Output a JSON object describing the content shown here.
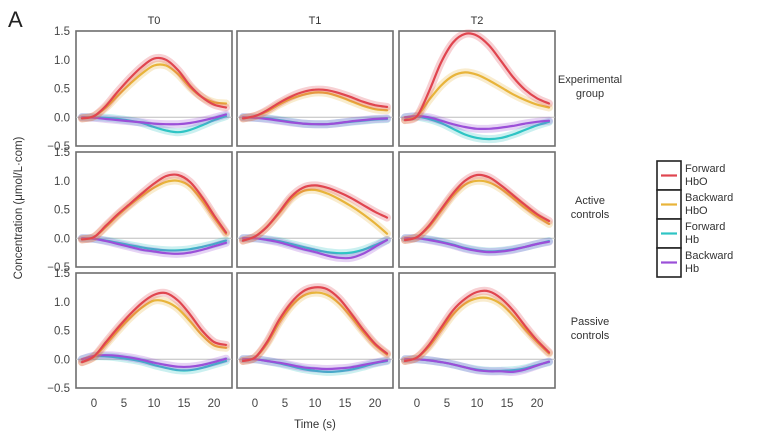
{
  "figure": {
    "panel_letter": "A"
  },
  "chart_data": {
    "type": "line",
    "layout": "facet grid (3 rows x 3 columns)",
    "xlabel": "Time (s)",
    "ylabel": "Concentration (μmol/L·com)",
    "xlim": [
      -3,
      23
    ],
    "ylim": [
      -0.5,
      1.5
    ],
    "xticks": [
      0,
      5,
      10,
      15,
      20
    ],
    "xtick_labels": [
      "0",
      "5",
      "10",
      "15",
      "20"
    ],
    "yticks": [
      -0.5,
      0.0,
      0.5,
      1.0,
      1.5
    ],
    "ytick_labels": [
      "-0.5",
      "0.0",
      "0.5",
      "1.0",
      "1.5"
    ],
    "zero_reference_line": true,
    "grid": false,
    "columns": [
      "T0",
      "T1",
      "T2"
    ],
    "rows": [
      {
        "label_lines": [
          "Experimental",
          "group"
        ]
      },
      {
        "label_lines": [
          "Active",
          "controls"
        ]
      },
      {
        "label_lines": [
          "Passive",
          "controls"
        ]
      }
    ],
    "legend": {
      "placement": "right",
      "entries": [
        {
          "key": "fwd_hbo",
          "lines": [
            "Forward",
            "HbO"
          ],
          "color": "#e0454f"
        },
        {
          "key": "bwd_hbo",
          "lines": [
            "Backward",
            "HbO"
          ],
          "color": "#e8b43a"
        },
        {
          "key": "fwd_hb",
          "lines": [
            "Forward",
            "Hb"
          ],
          "color": "#2ec4c4"
        },
        {
          "key": "bwd_hb",
          "lines": [
            "Backward",
            "Hb"
          ],
          "color": "#9b4fd8"
        }
      ]
    },
    "x": [
      -2,
      0,
      2,
      4,
      6,
      8,
      10,
      12,
      14,
      16,
      18,
      20,
      22
    ],
    "panels": [
      {
        "row": 0,
        "col": 0,
        "series": {
          "fwd_hbo": [
            -0.02,
            0.02,
            0.2,
            0.45,
            0.68,
            0.88,
            1.02,
            1.0,
            0.82,
            0.55,
            0.35,
            0.22,
            0.17
          ],
          "bwd_hbo": [
            -0.02,
            0.02,
            0.17,
            0.38,
            0.58,
            0.76,
            0.9,
            0.9,
            0.75,
            0.52,
            0.35,
            0.26,
            0.24
          ],
          "fwd_hb": [
            0.0,
            0.0,
            -0.01,
            -0.03,
            -0.06,
            -0.1,
            -0.17,
            -0.23,
            -0.26,
            -0.22,
            -0.14,
            -0.05,
            0.02
          ],
          "bwd_hb": [
            0.0,
            -0.01,
            -0.03,
            -0.05,
            -0.07,
            -0.09,
            -0.11,
            -0.12,
            -0.12,
            -0.1,
            -0.06,
            -0.01,
            0.05
          ]
        }
      },
      {
        "row": 0,
        "col": 1,
        "series": {
          "fwd_hbo": [
            -0.02,
            0.02,
            0.12,
            0.25,
            0.36,
            0.44,
            0.48,
            0.47,
            0.42,
            0.35,
            0.27,
            0.21,
            0.18
          ],
          "bwd_hbo": [
            -0.02,
            0.02,
            0.1,
            0.22,
            0.32,
            0.39,
            0.43,
            0.42,
            0.36,
            0.28,
            0.2,
            0.14,
            0.12
          ],
          "fwd_hb": [
            0.0,
            -0.01,
            -0.02,
            -0.05,
            -0.08,
            -0.11,
            -0.12,
            -0.12,
            -0.1,
            -0.08,
            -0.06,
            -0.04,
            -0.03
          ],
          "bwd_hb": [
            0.0,
            -0.01,
            -0.03,
            -0.06,
            -0.09,
            -0.11,
            -0.12,
            -0.12,
            -0.1,
            -0.07,
            -0.05,
            -0.03,
            -0.02
          ]
        }
      },
      {
        "row": 0,
        "col": 2,
        "series": {
          "fwd_hbo": [
            -0.05,
            0.02,
            0.45,
            0.95,
            1.3,
            1.45,
            1.42,
            1.25,
            0.98,
            0.7,
            0.48,
            0.33,
            0.24
          ],
          "bwd_hbo": [
            -0.05,
            0.02,
            0.3,
            0.55,
            0.72,
            0.78,
            0.74,
            0.64,
            0.52,
            0.4,
            0.3,
            0.22,
            0.17
          ],
          "fwd_hb": [
            0.0,
            0.01,
            -0.03,
            -0.1,
            -0.2,
            -0.3,
            -0.36,
            -0.38,
            -0.36,
            -0.3,
            -0.22,
            -0.14,
            -0.08
          ],
          "bwd_hb": [
            0.0,
            0.02,
            0.0,
            -0.06,
            -0.12,
            -0.17,
            -0.2,
            -0.2,
            -0.18,
            -0.15,
            -0.11,
            -0.08,
            -0.06
          ]
        }
      },
      {
        "row": 1,
        "col": 0,
        "series": {
          "fwd_hbo": [
            -0.02,
            0.02,
            0.22,
            0.42,
            0.6,
            0.78,
            0.95,
            1.08,
            1.1,
            0.98,
            0.72,
            0.4,
            0.1
          ],
          "bwd_hbo": [
            -0.02,
            0.02,
            0.2,
            0.4,
            0.58,
            0.74,
            0.88,
            0.98,
            1.0,
            0.9,
            0.66,
            0.36,
            0.08
          ],
          "fwd_hb": [
            0.0,
            -0.01,
            -0.04,
            -0.08,
            -0.12,
            -0.16,
            -0.19,
            -0.21,
            -0.21,
            -0.19,
            -0.15,
            -0.1,
            -0.04
          ],
          "bwd_hb": [
            0.0,
            -0.01,
            -0.05,
            -0.1,
            -0.15,
            -0.2,
            -0.23,
            -0.26,
            -0.27,
            -0.25,
            -0.2,
            -0.14,
            -0.08
          ]
        }
      },
      {
        "row": 1,
        "col": 1,
        "series": {
          "fwd_hbo": [
            -0.04,
            0.03,
            0.2,
            0.45,
            0.72,
            0.88,
            0.92,
            0.88,
            0.8,
            0.7,
            0.58,
            0.46,
            0.36
          ],
          "bwd_hbo": [
            -0.04,
            0.03,
            0.2,
            0.43,
            0.68,
            0.82,
            0.84,
            0.78,
            0.68,
            0.56,
            0.42,
            0.26,
            0.08
          ],
          "fwd_hb": [
            0.0,
            0.0,
            -0.02,
            -0.05,
            -0.1,
            -0.15,
            -0.2,
            -0.24,
            -0.26,
            -0.25,
            -0.2,
            -0.12,
            -0.03
          ],
          "bwd_hb": [
            0.0,
            0.0,
            -0.03,
            -0.07,
            -0.13,
            -0.19,
            -0.24,
            -0.3,
            -0.34,
            -0.34,
            -0.27,
            -0.15,
            -0.03
          ]
        }
      },
      {
        "row": 1,
        "col": 2,
        "series": {
          "fwd_hbo": [
            -0.03,
            0.02,
            0.22,
            0.5,
            0.78,
            1.0,
            1.1,
            1.06,
            0.92,
            0.75,
            0.58,
            0.42,
            0.3
          ],
          "bwd_hbo": [
            -0.03,
            0.02,
            0.2,
            0.47,
            0.74,
            0.93,
            1.0,
            0.97,
            0.86,
            0.7,
            0.53,
            0.38,
            0.25
          ],
          "fwd_hb": [
            0.0,
            0.0,
            -0.02,
            -0.06,
            -0.11,
            -0.17,
            -0.21,
            -0.23,
            -0.22,
            -0.19,
            -0.15,
            -0.1,
            -0.05
          ],
          "bwd_hb": [
            0.0,
            0.0,
            -0.03,
            -0.07,
            -0.12,
            -0.18,
            -0.22,
            -0.24,
            -0.23,
            -0.2,
            -0.15,
            -0.1,
            -0.06
          ]
        }
      },
      {
        "row": 2,
        "col": 0,
        "series": {
          "fwd_hbo": [
            -0.05,
            0.05,
            0.3,
            0.55,
            0.78,
            0.98,
            1.12,
            1.15,
            1.02,
            0.78,
            0.5,
            0.3,
            0.25
          ],
          "bwd_hbo": [
            -0.05,
            0.04,
            0.26,
            0.5,
            0.72,
            0.9,
            1.02,
            1.0,
            0.88,
            0.66,
            0.42,
            0.24,
            0.2
          ],
          "fwd_hb": [
            0.0,
            0.05,
            0.05,
            0.03,
            0.0,
            -0.04,
            -0.1,
            -0.15,
            -0.19,
            -0.19,
            -0.15,
            -0.09,
            -0.03
          ],
          "bwd_hb": [
            0.0,
            0.06,
            0.07,
            0.06,
            0.03,
            -0.01,
            -0.06,
            -0.1,
            -0.13,
            -0.13,
            -0.1,
            -0.05,
            0.01
          ]
        }
      },
      {
        "row": 2,
        "col": 1,
        "series": {
          "fwd_hbo": [
            -0.03,
            0.03,
            0.3,
            0.68,
            0.98,
            1.18,
            1.25,
            1.22,
            1.06,
            0.8,
            0.52,
            0.27,
            0.1
          ],
          "bwd_hbo": [
            -0.03,
            0.03,
            0.27,
            0.63,
            0.92,
            1.1,
            1.16,
            1.12,
            0.97,
            0.74,
            0.48,
            0.25,
            0.08
          ],
          "fwd_hb": [
            0.0,
            0.0,
            -0.03,
            -0.07,
            -0.12,
            -0.17,
            -0.2,
            -0.22,
            -0.21,
            -0.18,
            -0.13,
            -0.07,
            -0.03
          ],
          "bwd_hb": [
            0.0,
            0.0,
            -0.03,
            -0.06,
            -0.1,
            -0.14,
            -0.16,
            -0.17,
            -0.16,
            -0.14,
            -0.1,
            -0.06,
            -0.02
          ]
        }
      },
      {
        "row": 2,
        "col": 2,
        "series": {
          "fwd_hbo": [
            -0.03,
            0.03,
            0.25,
            0.55,
            0.85,
            1.05,
            1.17,
            1.18,
            1.06,
            0.85,
            0.58,
            0.33,
            0.12
          ],
          "bwd_hbo": [
            -0.03,
            0.03,
            0.22,
            0.5,
            0.78,
            0.97,
            1.06,
            1.06,
            0.96,
            0.76,
            0.52,
            0.3,
            0.1
          ],
          "fwd_hb": [
            0.0,
            0.0,
            -0.02,
            -0.05,
            -0.09,
            -0.14,
            -0.18,
            -0.2,
            -0.2,
            -0.19,
            -0.16,
            -0.1,
            -0.05
          ],
          "bwd_hb": [
            0.0,
            0.0,
            -0.02,
            -0.05,
            -0.09,
            -0.14,
            -0.19,
            -0.21,
            -0.21,
            -0.22,
            -0.18,
            -0.11,
            -0.04
          ]
        }
      }
    ]
  }
}
